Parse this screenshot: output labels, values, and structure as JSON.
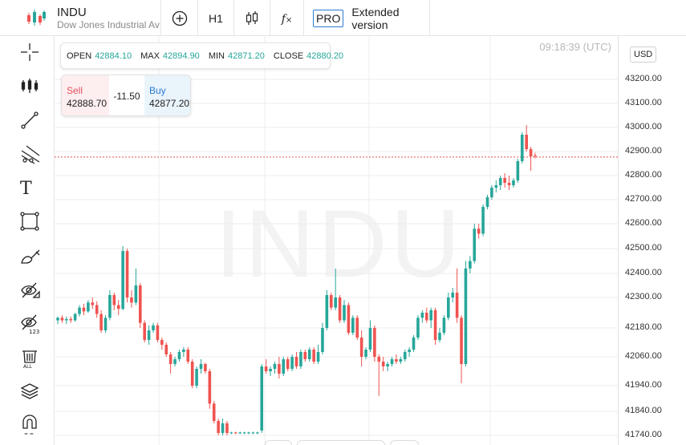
{
  "instrument": {
    "symbol": "INDU",
    "name": "Dow Jones Industrial Average"
  },
  "toolbar": {
    "timeframe": "H1",
    "fx_label": "f",
    "pro_badge": "PRO",
    "extended_label": "Extended version"
  },
  "left_tools": [
    {
      "name": "crosshair-icon"
    },
    {
      "name": "indicators-icon"
    },
    {
      "name": "trend-line-icon"
    },
    {
      "name": "fibonacci-icon"
    },
    {
      "name": "text-tool-icon"
    },
    {
      "name": "rectangle-icon"
    },
    {
      "name": "brush-icon"
    },
    {
      "name": "hide-drawings-icon"
    },
    {
      "name": "hide-indicators-icon"
    },
    {
      "name": "delete-all-icon"
    },
    {
      "name": "layers-icon"
    },
    {
      "name": "magnet-icon"
    }
  ],
  "ohlc": {
    "open_label": "OPEN",
    "open": "42884.10",
    "max_label": "MAX",
    "max": "42894.90",
    "min_label": "MIN",
    "min": "42871.20",
    "close_label": "CLOSE",
    "close": "42880.20"
  },
  "trade": {
    "sell_label": "Sell",
    "sell_price": "42888.70",
    "spread": "-11.50",
    "buy_label": "Buy",
    "buy_price": "42877.20"
  },
  "clock": "09:18:39 (UTC)",
  "currency": "USD",
  "watermark": "INDU",
  "colors": {
    "up": "#26a69a",
    "down": "#ef5350",
    "current_price_line": "#e05252"
  },
  "chart_data": {
    "type": "candlestick",
    "ylim": [
      41700,
      43450
    ],
    "yticks": [
      {
        "value": 43200,
        "label": "43200.00"
      },
      {
        "value": 43100,
        "label": "43100.00"
      },
      {
        "value": 43000,
        "label": "43000.00"
      },
      {
        "value": 42900,
        "label": "42900.00"
      },
      {
        "value": 42800,
        "label": "42800.00"
      },
      {
        "value": 42700,
        "label": "42700.00"
      },
      {
        "value": 42600,
        "label": "42600.00"
      },
      {
        "value": 42500,
        "label": "42500.00"
      },
      {
        "value": 42400,
        "label": "42400.00"
      },
      {
        "value": 42300,
        "label": "42300.00"
      },
      {
        "value": 42180,
        "label": "42180.00"
      },
      {
        "value": 42060,
        "label": "42060.00"
      },
      {
        "value": 41940,
        "label": "41940.00"
      },
      {
        "value": 41840,
        "label": "41840.00"
      },
      {
        "value": 41740,
        "label": "41740.00"
      }
    ],
    "current_price": 42877,
    "candles": [
      [
        42210,
        42225,
        42195,
        42220
      ],
      [
        42220,
        42230,
        42200,
        42210
      ],
      [
        42210,
        42225,
        42195,
        42215
      ],
      [
        42215,
        42225,
        42200,
        42210
      ],
      [
        42210,
        42240,
        42205,
        42235
      ],
      [
        42235,
        42270,
        42225,
        42260
      ],
      [
        42260,
        42275,
        42230,
        42245
      ],
      [
        42245,
        42290,
        42240,
        42280
      ],
      [
        42280,
        42300,
        42255,
        42270
      ],
      [
        42270,
        42285,
        42220,
        42235
      ],
      [
        42235,
        42250,
        42160,
        42170
      ],
      [
        42170,
        42230,
        42160,
        42220
      ],
      [
        42220,
        42330,
        42210,
        42310
      ],
      [
        42310,
        42320,
        42250,
        42270
      ],
      [
        42270,
        42290,
        42230,
        42255
      ],
      [
        42255,
        42510,
        42250,
        42490
      ],
      [
        42490,
        42500,
        42280,
        42300
      ],
      [
        42300,
        42330,
        42260,
        42280
      ],
      [
        42280,
        42420,
        42270,
        42350
      ],
      [
        42350,
        42360,
        42180,
        42200
      ],
      [
        42200,
        42210,
        42120,
        42130
      ],
      [
        42130,
        42190,
        42110,
        42170
      ],
      [
        42170,
        42200,
        42160,
        42190
      ],
      [
        42190,
        42200,
        42120,
        42130
      ],
      [
        42130,
        42140,
        42090,
        42110
      ],
      [
        42110,
        42120,
        42060,
        42070
      ],
      [
        42070,
        42080,
        41990,
        42030
      ],
      [
        42030,
        42060,
        42020,
        42050
      ],
      [
        42050,
        42090,
        42040,
        42080
      ],
      [
        42080,
        42100,
        42060,
        42090
      ],
      [
        42090,
        42100,
        42030,
        42040
      ],
      [
        42040,
        42050,
        41930,
        41940
      ],
      [
        41940,
        42020,
        41930,
        42010
      ],
      [
        42010,
        42050,
        41990,
        42030
      ],
      [
        42030,
        42035,
        41990,
        42000
      ],
      [
        42000,
        42010,
        41850,
        41870
      ],
      [
        41870,
        41880,
        41790,
        41800
      ],
      [
        41800,
        41810,
        41740,
        41750
      ],
      [
        41750,
        41810,
        41740,
        41790
      ],
      [
        41790,
        41800,
        41740,
        41750
      ],
      [
        41750,
        41755,
        41745,
        41752
      ],
      [
        41752,
        41755,
        41745,
        41750
      ],
      [
        41750,
        41755,
        41745,
        41752
      ],
      [
        41752,
        41755,
        41745,
        41752
      ],
      [
        41752,
        41755,
        41745,
        41752
      ],
      [
        41752,
        41755,
        41745,
        41752
      ],
      [
        41752,
        41755,
        41745,
        41752
      ],
      [
        41760,
        42030,
        41750,
        42020
      ],
      [
        42020,
        42050,
        41990,
        42000
      ],
      [
        42000,
        42020,
        41980,
        42010
      ],
      [
        42010,
        42040,
        41990,
        42030
      ],
      [
        42030,
        42060,
        41970,
        41990
      ],
      [
        41990,
        42060,
        41980,
        42050
      ],
      [
        42050,
        42060,
        42000,
        42010
      ],
      [
        42010,
        42070,
        42000,
        42060
      ],
      [
        42060,
        42080,
        42010,
        42020
      ],
      [
        42020,
        42090,
        42010,
        42080
      ],
      [
        42080,
        42090,
        42040,
        42050
      ],
      [
        42050,
        42100,
        42040,
        42090
      ],
      [
        42090,
        42100,
        42030,
        42040
      ],
      [
        42040,
        42110,
        42030,
        42080
      ],
      [
        42080,
        42200,
        42070,
        42180
      ],
      [
        42180,
        42330,
        42170,
        42310
      ],
      [
        42310,
        42320,
        42250,
        42260
      ],
      [
        42260,
        42420,
        42250,
        42300
      ],
      [
        42300,
        42310,
        42200,
        42210
      ],
      [
        42210,
        42290,
        42200,
        42270
      ],
      [
        42270,
        42280,
        42150,
        42160
      ],
      [
        42160,
        42230,
        42150,
        42220
      ],
      [
        42220,
        42230,
        42130,
        42140
      ],
      [
        42140,
        42170,
        42020,
        42060
      ],
      [
        42060,
        42100,
        42050,
        42090
      ],
      [
        42090,
        42210,
        42080,
        42180
      ],
      [
        42180,
        42190,
        42040,
        42060
      ],
      [
        42060,
        42070,
        41900,
        42040
      ],
      [
        42040,
        42060,
        42000,
        42020
      ],
      [
        42020,
        42040,
        42000,
        42030
      ],
      [
        42030,
        42060,
        42020,
        42050
      ],
      [
        42050,
        42070,
        42030,
        42040
      ],
      [
        42040,
        42060,
        42030,
        42050
      ],
      [
        42050,
        42090,
        42040,
        42080
      ],
      [
        42080,
        42100,
        42060,
        42090
      ],
      [
        42090,
        42150,
        42080,
        42140
      ],
      [
        42140,
        42230,
        42130,
        42220
      ],
      [
        42220,
        42250,
        42200,
        42240
      ],
      [
        42240,
        42260,
        42200,
        42210
      ],
      [
        42210,
        42260,
        42180,
        42250
      ],
      [
        42250,
        42260,
        42110,
        42130
      ],
      [
        42130,
        42180,
        42120,
        42160
      ],
      [
        42160,
        42230,
        42150,
        42220
      ],
      [
        42220,
        42320,
        42210,
        42300
      ],
      [
        42300,
        42340,
        42280,
        42320
      ],
      [
        42320,
        42420,
        42200,
        42220
      ],
      [
        42220,
        42230,
        41950,
        42030
      ],
      [
        42030,
        42450,
        42020,
        42420
      ],
      [
        42420,
        42470,
        42400,
        42450
      ],
      [
        42450,
        42600,
        42440,
        42580
      ],
      [
        42580,
        42600,
        42540,
        42560
      ],
      [
        42560,
        42680,
        42550,
        42670
      ],
      [
        42670,
        42720,
        42660,
        42710
      ],
      [
        42710,
        42760,
        42700,
        42750
      ],
      [
        42750,
        42780,
        42730,
        42760
      ],
      [
        42760,
        42800,
        42740,
        42790
      ],
      [
        42790,
        42810,
        42750,
        42770
      ],
      [
        42770,
        42800,
        42740,
        42760
      ],
      [
        42760,
        42790,
        42750,
        42780
      ],
      [
        42780,
        42870,
        42770,
        42860
      ],
      [
        42860,
        42980,
        42850,
        42970
      ],
      [
        42970,
        43010,
        42900,
        42910
      ],
      [
        42910,
        42920,
        42820,
        42880
      ],
      [
        42884,
        42895,
        42871,
        42880
      ]
    ]
  }
}
